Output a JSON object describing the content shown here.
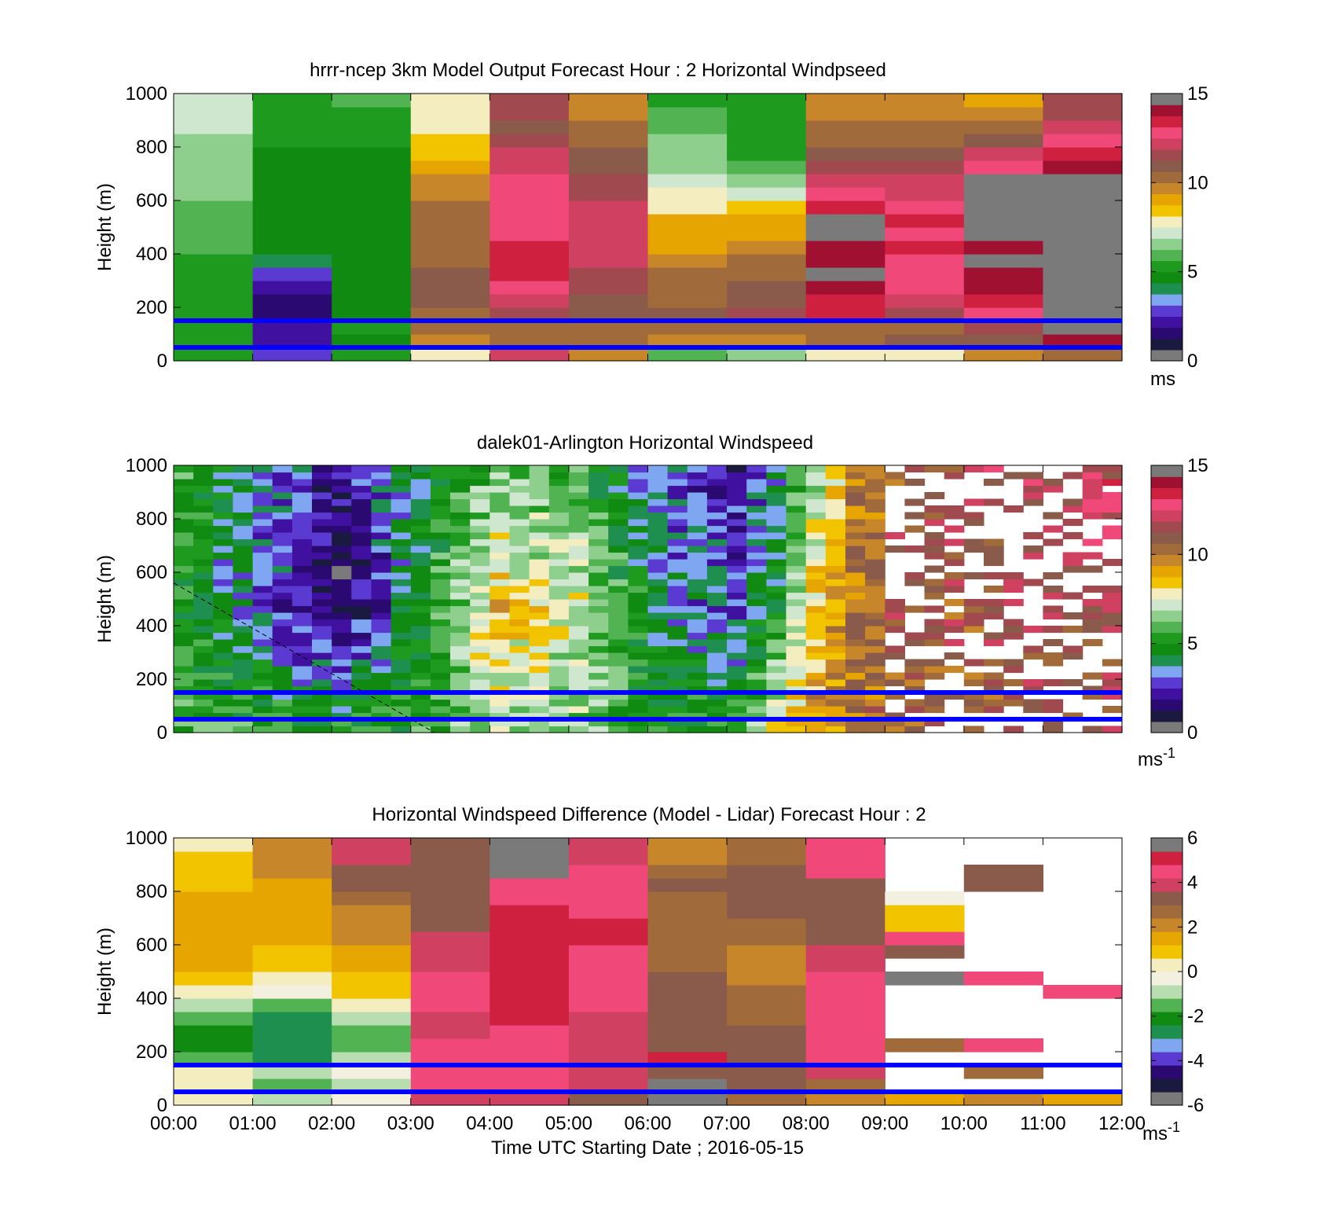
{
  "figure": {
    "xlabel": "Time UTC  Starting Date ; 2016-05-15",
    "ylabel": "Height (m)",
    "x_ticks": [
      "00:00",
      "01:00",
      "02:00",
      "03:00",
      "04:00",
      "05:00",
      "06:00",
      "07:00",
      "08:00",
      "09:00",
      "10:00",
      "11:00",
      "12:00"
    ],
    "y_ticks": [
      "0",
      "200",
      "400",
      "600",
      "800",
      "1000"
    ]
  },
  "colors": {
    "speed_colormap": [
      "#7a7a7a",
      "#1a1a40",
      "#2a0a70",
      "#4010a0",
      "#5a3ad0",
      "#7fa6f0",
      "#1f8f4f",
      "#118a11",
      "#1e9b1e",
      "#52b352",
      "#8ecf8e",
      "#cfe7cf",
      "#f3edc0",
      "#f2c400",
      "#e6a500",
      "#c8862a",
      "#a06a3a",
      "#8a5a4a",
      "#a04a50",
      "#d04060",
      "#f04878",
      "#d02040",
      "#a01030",
      "#7a7a7a"
    ],
    "diff_colormap": [
      "#7a7a7a",
      "#1a1a40",
      "#2a0a70",
      "#5a3ad0",
      "#7fa6f0",
      "#1f8f4f",
      "#118a11",
      "#52b352",
      "#b8ddb0",
      "#f3f0e0",
      "#f3edc0",
      "#f2c400",
      "#e6a500",
      "#c8862a",
      "#a06a3a",
      "#8a5a4a",
      "#d04060",
      "#f04878",
      "#d02040",
      "#7a7a7a"
    ],
    "reference_lines": "#0000ff"
  },
  "chart_data": [
    {
      "type": "heatmap",
      "title": "hrrr-ncep 3km Model Output   Forecast Hour : 2 Horizontal Windpseed",
      "xlabel": "",
      "ylabel": "Height (m)",
      "xlim": [
        0,
        12
      ],
      "ylim": [
        0,
        1000
      ],
      "x_ticks": [],
      "colorbar": {
        "range": [
          0,
          15
        ],
        "ticks": [
          "0",
          "5",
          "10",
          "15"
        ],
        "unit": "ms",
        "unit_sup": ""
      },
      "reference_lines_m": [
        50,
        150
      ],
      "levels_m": [
        0,
        50,
        100,
        150,
        200,
        250,
        300,
        350,
        400,
        450,
        500,
        550,
        600,
        650,
        700,
        750,
        800,
        850,
        900,
        950,
        1000
      ],
      "column_hours": [
        0,
        1,
        2,
        3,
        4,
        5,
        6,
        7,
        8,
        9,
        10,
        11
      ],
      "values": [
        [
          5.5,
          3.0,
          5.2,
          8.0,
          12.0,
          9.5,
          5.8,
          6.5,
          8.0,
          7.5,
          9.5,
          10.5
        ],
        [
          5.0,
          2.0,
          4.5,
          9.5,
          10.0,
          10.0,
          9.5,
          9.5,
          10.5,
          11.0,
          11.0,
          14.0
        ],
        [
          5.0,
          2.0,
          5.0,
          10.0,
          10.5,
          10.5,
          10.0,
          10.5,
          10.5,
          10.5,
          11.5,
          14.5
        ],
        [
          5.0,
          1.5,
          4.8,
          10.5,
          11.5,
          11.0,
          11.0,
          11.5,
          13.5,
          11.5,
          13.0,
          15.0
        ],
        [
          5.2,
          1.5,
          4.5,
          11.0,
          12.0,
          11.0,
          10.5,
          11.0,
          13.5,
          12.0,
          13.5,
          15.0
        ],
        [
          5.3,
          2.0,
          4.7,
          11.0,
          13.0,
          11.5,
          10.5,
          11.0,
          14.0,
          12.5,
          14.0,
          0.0
        ],
        [
          5.5,
          3.0,
          4.5,
          11.0,
          13.5,
          11.5,
          10.0,
          10.5,
          14.5,
          13.0,
          14.0,
          0.0
        ],
        [
          5.6,
          4.0,
          4.5,
          10.5,
          13.5,
          12.0,
          9.5,
          10.0,
          14.0,
          13.0,
          14.5,
          0.0
        ],
        [
          5.8,
          4.5,
          4.5,
          10.5,
          13.5,
          12.0,
          9.0,
          9.5,
          14.0,
          13.5,
          14.0,
          0.0
        ],
        [
          6.0,
          4.5,
          4.5,
          10.0,
          13.0,
          12.0,
          9.0,
          9.0,
          14.5,
          13.0,
          14.5,
          0.0
        ],
        [
          6.0,
          4.6,
          4.5,
          10.0,
          13.0,
          12.0,
          9.0,
          9.0,
          14.5,
          13.5,
          14.5,
          0.0
        ],
        [
          6.2,
          4.6,
          4.5,
          10.0,
          13.0,
          12.0,
          8.0,
          8.5,
          13.5,
          12.5,
          15.0,
          0.0
        ],
        [
          6.3,
          4.6,
          4.4,
          9.5,
          13.0,
          11.5,
          7.5,
          7.0,
          12.5,
          12.0,
          15.0,
          0.0
        ],
        [
          6.4,
          4.7,
          4.5,
          9.5,
          12.5,
          11.5,
          7.0,
          6.5,
          12.0,
          12.0,
          14.5,
          0.0
        ],
        [
          6.5,
          4.8,
          4.6,
          9.0,
          12.0,
          11.0,
          6.5,
          6.0,
          11.5,
          11.5,
          12.5,
          14.0
        ],
        [
          6.6,
          4.9,
          4.7,
          8.5,
          12.0,
          11.0,
          6.5,
          5.5,
          11.0,
          11.0,
          12.0,
          13.5
        ],
        [
          6.8,
          5.0,
          5.0,
          8.5,
          11.5,
          10.5,
          6.5,
          5.5,
          10.5,
          10.5,
          11.0,
          13.0
        ],
        [
          6.9,
          5.0,
          5.2,
          8.0,
          11.0,
          10.0,
          6.0,
          5.0,
          10.0,
          10.0,
          10.0,
          12.0
        ],
        [
          7.0,
          5.0,
          5.5,
          7.5,
          11.5,
          9.5,
          6.0,
          5.0,
          9.5,
          9.5,
          9.5,
          11.5
        ],
        [
          7.1,
          5.0,
          5.8,
          7.5,
          11.5,
          9.5,
          5.5,
          5.0,
          9.5,
          9.5,
          9.0,
          11.5
        ]
      ]
    },
    {
      "type": "heatmap",
      "title": "dalek01-Arlington  Horizontal Windspeed",
      "xlabel": "",
      "ylabel": "Height (m)",
      "xlim": [
        0,
        12
      ],
      "ylim": [
        0,
        1000
      ],
      "x_ticks": [],
      "colorbar": {
        "range": [
          0,
          15
        ],
        "ticks": [
          "0",
          "5",
          "10",
          "15"
        ],
        "unit": "ms",
        "unit_sup": "-1"
      },
      "reference_lines_m": [
        50,
        150
      ],
      "dashed_line": {
        "from": [
          0,
          560
        ],
        "to": [
          3.3,
          0
        ]
      },
      "column_step_h": 0.25,
      "level_step_m": 25,
      "speed_profile_keyframes": {
        "hours": [
          0,
          1,
          2,
          3,
          4,
          5,
          6,
          7,
          7.5,
          8,
          8.5,
          9,
          9.5,
          10,
          11,
          12
        ],
        "low_m_s": [
          6.0,
          5.5,
          5.0,
          5.5,
          7.0,
          6.5,
          5.0,
          5.5,
          7.5,
          9.5,
          10.0,
          10.5,
          10.5,
          10.5,
          11.0,
          11.0
        ],
        "mid_m_s": [
          5.0,
          3.0,
          1.0,
          4.5,
          8.5,
          7.5,
          4.0,
          3.0,
          5.0,
          8.5,
          10.0,
          11.0,
          11.0,
          11.0,
          11.5,
          12.0
        ],
        "top_m_s": [
          5.5,
          3.5,
          2.0,
          4.5,
          6.0,
          5.5,
          3.0,
          2.0,
          3.5,
          6.5,
          9.5,
          11.0,
          11.0,
          11.5,
          12.0,
          12.5
        ],
        "data_gaps_after_h": 9.0
      }
    },
    {
      "type": "heatmap",
      "title": "Horizontal Windspeed Difference (Model - Lidar) Forecast Hour : 2",
      "xlabel": "Time UTC  Starting Date ; 2016-05-15",
      "ylabel": "Height (m)",
      "xlim": [
        0,
        12
      ],
      "ylim": [
        0,
        1000
      ],
      "x_ticks": [
        "00:00",
        "01:00",
        "02:00",
        "03:00",
        "04:00",
        "05:00",
        "06:00",
        "07:00",
        "08:00",
        "09:00",
        "10:00",
        "11:00",
        "12:00"
      ],
      "colorbar": {
        "range": [
          -6,
          6
        ],
        "ticks": [
          "-6",
          "-4",
          "-2",
          "0",
          "2",
          "4",
          "6"
        ],
        "unit": "ms",
        "unit_sup": "-1"
      },
      "reference_lines_m": [
        50,
        150
      ],
      "column_hours": [
        0,
        1,
        2,
        3,
        4,
        5,
        6,
        7,
        8,
        9,
        10,
        11
      ],
      "levels_m": [
        0,
        50,
        100,
        150,
        200,
        250,
        300,
        350,
        400,
        450,
        500,
        550,
        600,
        650,
        700,
        750,
        800,
        850,
        900,
        950,
        1000
      ],
      "values": [
        [
          0.0,
          -1.0,
          -0.5,
          4.0,
          4.0,
          3.5,
          6.0,
          2.5,
          2.0,
          1.5,
          2.0,
          1.5
        ],
        [
          0.5,
          -1.5,
          -1.0,
          4.5,
          4.5,
          4.0,
          6.0,
          3.0,
          2.5,
          null,
          null,
          null
        ],
        [
          0.0,
          -1.0,
          -0.5,
          4.5,
          4.5,
          4.0,
          3.5,
          3.0,
          4.0,
          null,
          2.5,
          null
        ],
        [
          -1.5,
          -3.0,
          -1.0,
          4.5,
          4.5,
          4.0,
          5.0,
          3.5,
          4.5,
          null,
          null,
          null
        ],
        [
          -2.0,
          -3.0,
          -1.5,
          4.5,
          4.5,
          4.0,
          3.5,
          3.5,
          4.5,
          2.5,
          4.5,
          null
        ],
        [
          -2.0,
          -3.0,
          -1.5,
          4.0,
          4.5,
          4.0,
          3.5,
          3.0,
          4.5,
          null,
          null,
          null
        ],
        [
          -1.5,
          -2.5,
          -1.0,
          4.0,
          5.0,
          4.0,
          3.5,
          2.5,
          4.5,
          null,
          null,
          null
        ],
        [
          -1.0,
          -1.5,
          0.5,
          4.5,
          5.0,
          4.5,
          3.0,
          2.5,
          4.5,
          null,
          null,
          null
        ],
        [
          0.5,
          -0.5,
          1.0,
          4.5,
          5.0,
          4.5,
          3.0,
          2.5,
          4.5,
          null,
          null,
          4.5
        ],
        [
          1.0,
          0.5,
          1.0,
          4.5,
          5.0,
          4.5,
          3.0,
          2.0,
          4.5,
          6.0,
          4.5,
          null
        ],
        [
          1.5,
          1.0,
          1.5,
          4.0,
          5.0,
          4.5,
          2.5,
          2.0,
          4.0,
          null,
          null,
          null
        ],
        [
          1.5,
          1.0,
          1.5,
          4.0,
          5.0,
          4.5,
          2.5,
          2.0,
          4.0,
          3.0,
          null,
          null
        ],
        [
          1.5,
          1.5,
          2.0,
          4.0,
          5.0,
          5.0,
          2.5,
          2.5,
          3.5,
          4.5,
          null,
          null
        ],
        [
          1.5,
          1.5,
          2.0,
          3.5,
          5.0,
          5.0,
          2.5,
          2.5,
          3.5,
          1.0,
          null,
          null
        ],
        [
          1.5,
          1.5,
          2.0,
          3.0,
          5.0,
          4.5,
          2.5,
          3.0,
          3.5,
          1.0,
          null,
          null
        ],
        [
          1.5,
          1.5,
          2.5,
          3.0,
          4.5,
          4.5,
          2.5,
          3.0,
          3.5,
          -0.5,
          null,
          null
        ],
        [
          1.0,
          1.5,
          3.0,
          3.0,
          4.5,
          4.5,
          3.0,
          3.0,
          3.5,
          null,
          3.0,
          null
        ],
        [
          1.0,
          2.0,
          3.5,
          3.0,
          5.5,
          4.5,
          2.5,
          3.0,
          4.5,
          null,
          3.0,
          null
        ],
        [
          1.0,
          2.0,
          4.0,
          3.0,
          6.0,
          4.0,
          2.0,
          2.5,
          4.5,
          null,
          null,
          null
        ],
        [
          0.5,
          2.0,
          4.0,
          3.0,
          6.0,
          4.0,
          2.0,
          2.5,
          4.5,
          null,
          null,
          null
        ]
      ]
    }
  ]
}
